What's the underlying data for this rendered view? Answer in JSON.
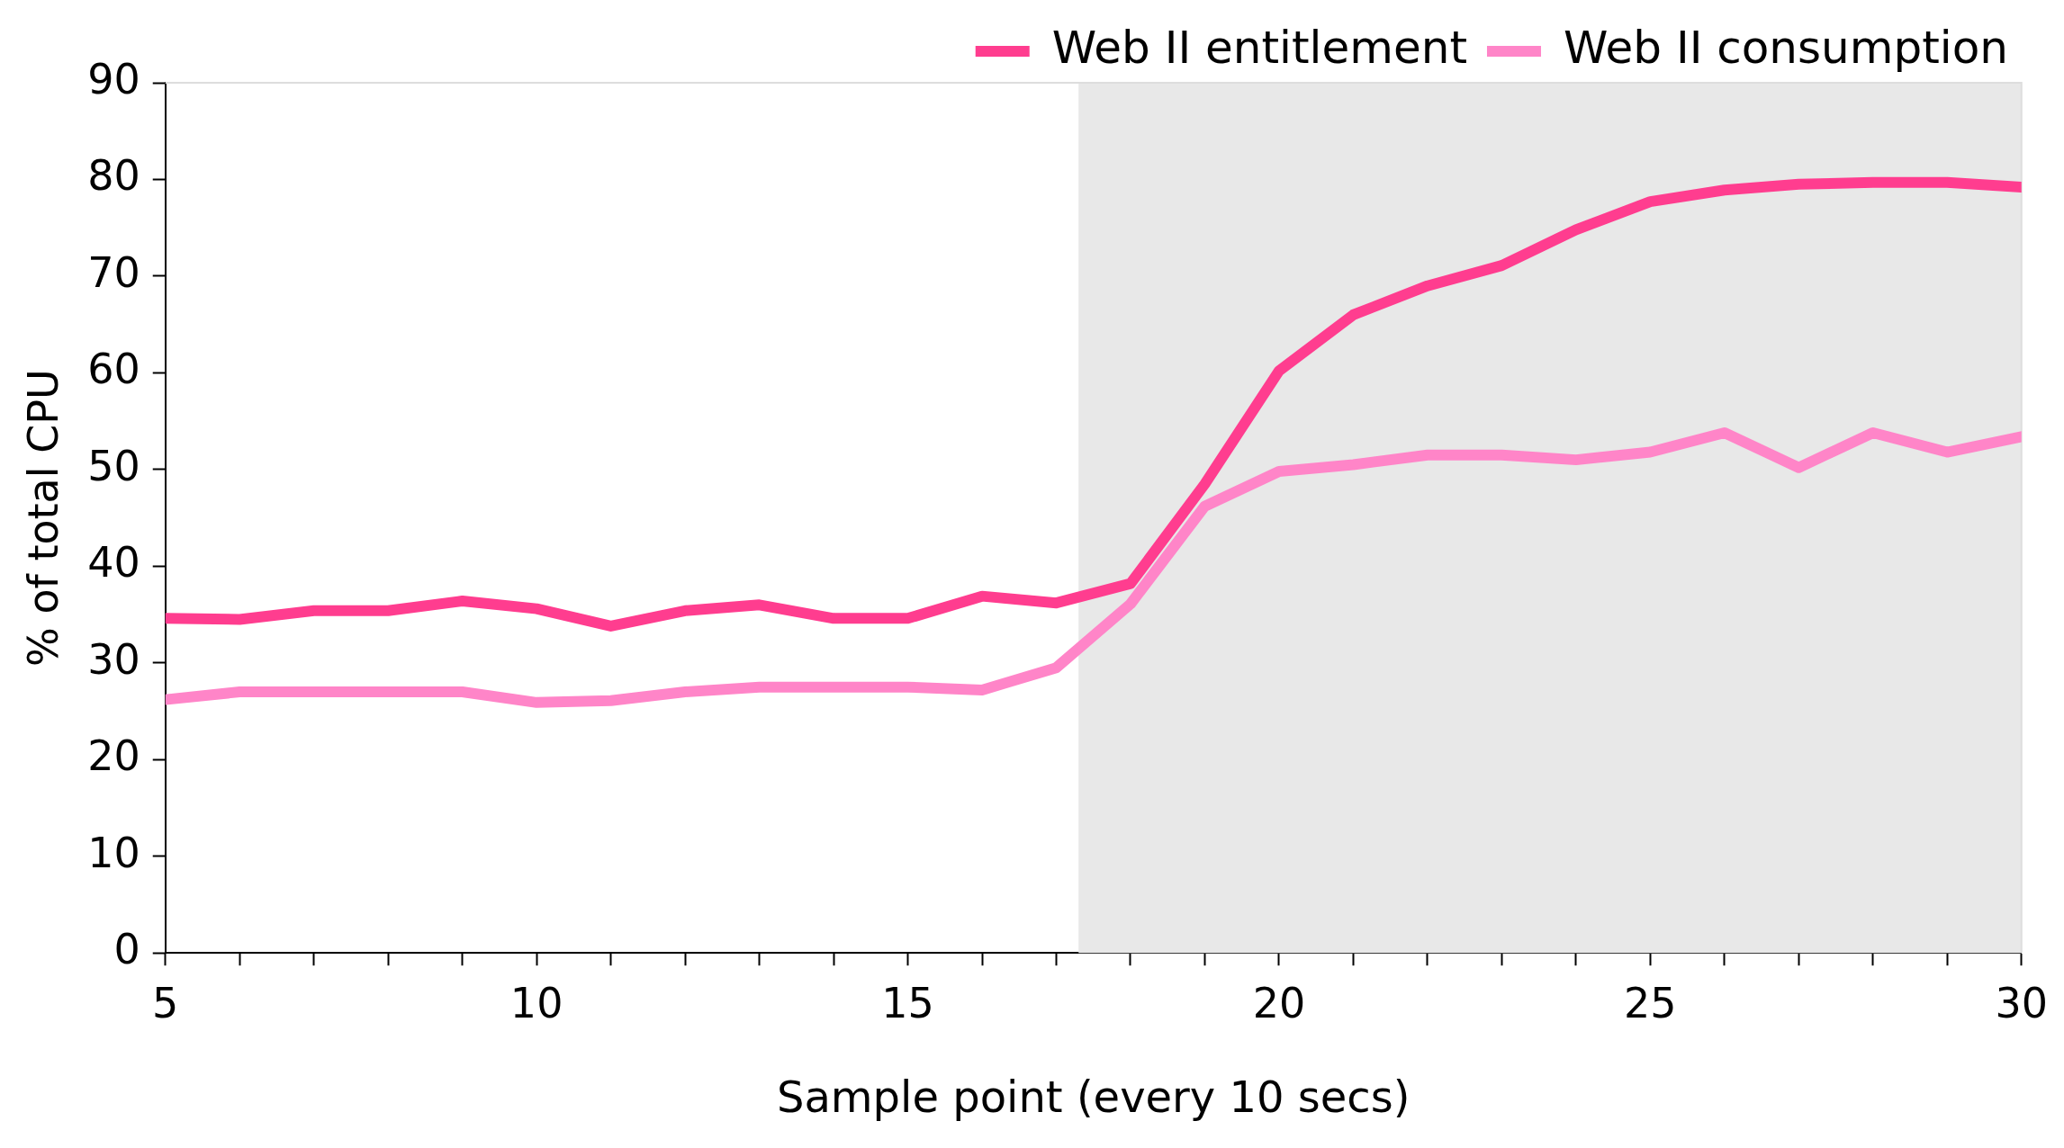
{
  "chart_data": {
    "type": "line",
    "xlabel": "Sample point (every 10 secs)",
    "ylabel": "% of total CPU",
    "x": [
      5,
      6,
      7,
      8,
      9,
      10,
      11,
      12,
      13,
      14,
      15,
      16,
      17,
      18,
      19,
      20,
      21,
      22,
      23,
      24,
      25,
      26,
      27,
      28,
      29,
      30
    ],
    "series": [
      {
        "name": "Web II entitlement",
        "color": "#ff3d8f",
        "values": [
          34.6,
          34.5,
          35.4,
          35.4,
          36.4,
          35.6,
          33.8,
          35.4,
          36,
          34.6,
          34.6,
          36.9,
          36.2,
          38.2,
          48.5,
          60.2,
          66,
          69,
          71.1,
          74.8,
          77.7,
          78.9,
          79.5,
          79.7,
          79.7,
          79.2
        ]
      },
      {
        "name": "Web II consumption",
        "color": "#ff85c8",
        "values": [
          26.2,
          27,
          27,
          27,
          27,
          25.9,
          26.1,
          27,
          27.5,
          27.5,
          27.5,
          27.2,
          29.5,
          36.1,
          46.2,
          49.8,
          50.5,
          51.5,
          51.5,
          51,
          51.8,
          53.8,
          50.2,
          53.8,
          51.8,
          53.4
        ]
      }
    ],
    "xlim": [
      5,
      30
    ],
    "xticks": [
      5,
      {
        "value": 6,
        "label": null
      },
      {
        "value": 7,
        "label": null
      },
      {
        "value": 8,
        "label": null
      },
      {
        "value": 9,
        "label": null
      },
      10,
      {
        "value": 11,
        "label": null
      },
      {
        "value": 12,
        "label": null
      },
      {
        "value": 13,
        "label": null
      },
      {
        "value": 14,
        "label": null
      },
      15,
      {
        "value": 16,
        "label": null
      },
      {
        "value": 17,
        "label": null
      },
      {
        "value": 18,
        "label": null
      },
      {
        "value": 19,
        "label": null
      },
      20,
      {
        "value": 21,
        "label": null
      },
      {
        "value": 22,
        "label": null
      },
      {
        "value": 23,
        "label": null
      },
      {
        "value": 24,
        "label": null
      },
      25,
      {
        "value": 26,
        "label": null
      },
      {
        "value": 27,
        "label": null
      },
      {
        "value": 28,
        "label": null
      },
      {
        "value": 29,
        "label": null
      },
      30
    ],
    "ylim": [
      0,
      90
    ],
    "yticks": [
      0,
      10,
      20,
      30,
      40,
      50,
      60,
      70,
      80,
      90
    ],
    "bands": [
      {
        "axis": "x",
        "from": 17.3,
        "to": 30,
        "color": "#e8e8e8"
      }
    ],
    "grid": false,
    "legend": "top right",
    "marker": "none",
    "line_style": "solid"
  }
}
